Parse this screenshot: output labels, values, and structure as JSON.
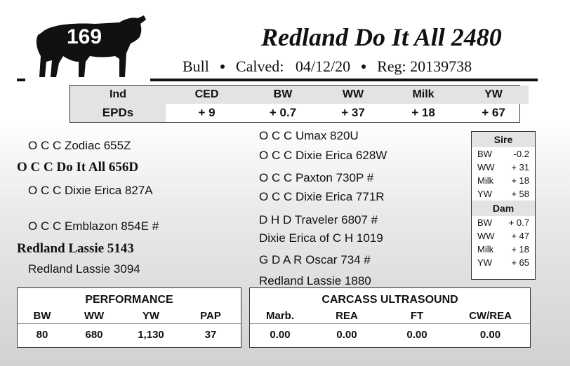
{
  "header": {
    "lot_number": "169",
    "title": "Redland  Do It All 2480",
    "sex": "Bull",
    "calved_label": "Calved:",
    "calved_date": "04/12/20",
    "reg_label": "Reg:",
    "reg_number": "20139738"
  },
  "epds": {
    "row_labels": [
      "Ind",
      "EPDs"
    ],
    "columns": [
      {
        "name": "CED",
        "value": "+ 9"
      },
      {
        "name": "BW",
        "value": "+ 0.7"
      },
      {
        "name": "WW",
        "value": "+ 37"
      },
      {
        "name": "Milk",
        "value": "+ 18"
      },
      {
        "name": "YW",
        "value": "+ 67"
      }
    ]
  },
  "pedigree": {
    "sire": "O C C Do It All 656D",
    "sire_sire": "O C C Zodiac 655Z",
    "sire_dam": "O C C Dixie Erica 827A",
    "sss": "O C C Umax 820U",
    "ssd": "O C C Dixie Erica 628W",
    "sds": "O C C Paxton 730P #",
    "sdd": "O C C Dixie Erica 771R",
    "dam": "Redland Lassie 5143",
    "dam_sire": "O C C Emblazon 854E #",
    "dam_dam": "Redland Lassie 3094",
    "dss": "D H D Traveler 6807 #",
    "dsd": "Dixie Erica of C H 1019",
    "dds": "G D A R Oscar 734 #",
    "ddd": "Redland Lassie 1880"
  },
  "sire_dam_epds": {
    "sire_title": "Sire",
    "sire": [
      {
        "k": "BW",
        "v": "-0.2"
      },
      {
        "k": "WW",
        "v": "+ 31"
      },
      {
        "k": "Milk",
        "v": "+ 18"
      },
      {
        "k": "YW",
        "v": "+ 58"
      }
    ],
    "dam_title": "Dam",
    "dam": [
      {
        "k": "BW",
        "v": "+ 0.7"
      },
      {
        "k": "WW",
        "v": "+ 47"
      },
      {
        "k": "Milk",
        "v": "+ 18"
      },
      {
        "k": "YW",
        "v": "+ 65"
      }
    ]
  },
  "performance": {
    "title": "PERFORMANCE",
    "columns": [
      "BW",
      "WW",
      "YW",
      "PAP"
    ],
    "values": [
      "80",
      "680",
      "1,130",
      "37"
    ]
  },
  "carcass": {
    "title": "CARCASS ULTRASOUND",
    "columns": [
      "Marb.",
      "REA",
      "FT",
      "CW/REA"
    ],
    "values": [
      "0.00",
      "0.00",
      "0.00",
      "0.00"
    ]
  }
}
